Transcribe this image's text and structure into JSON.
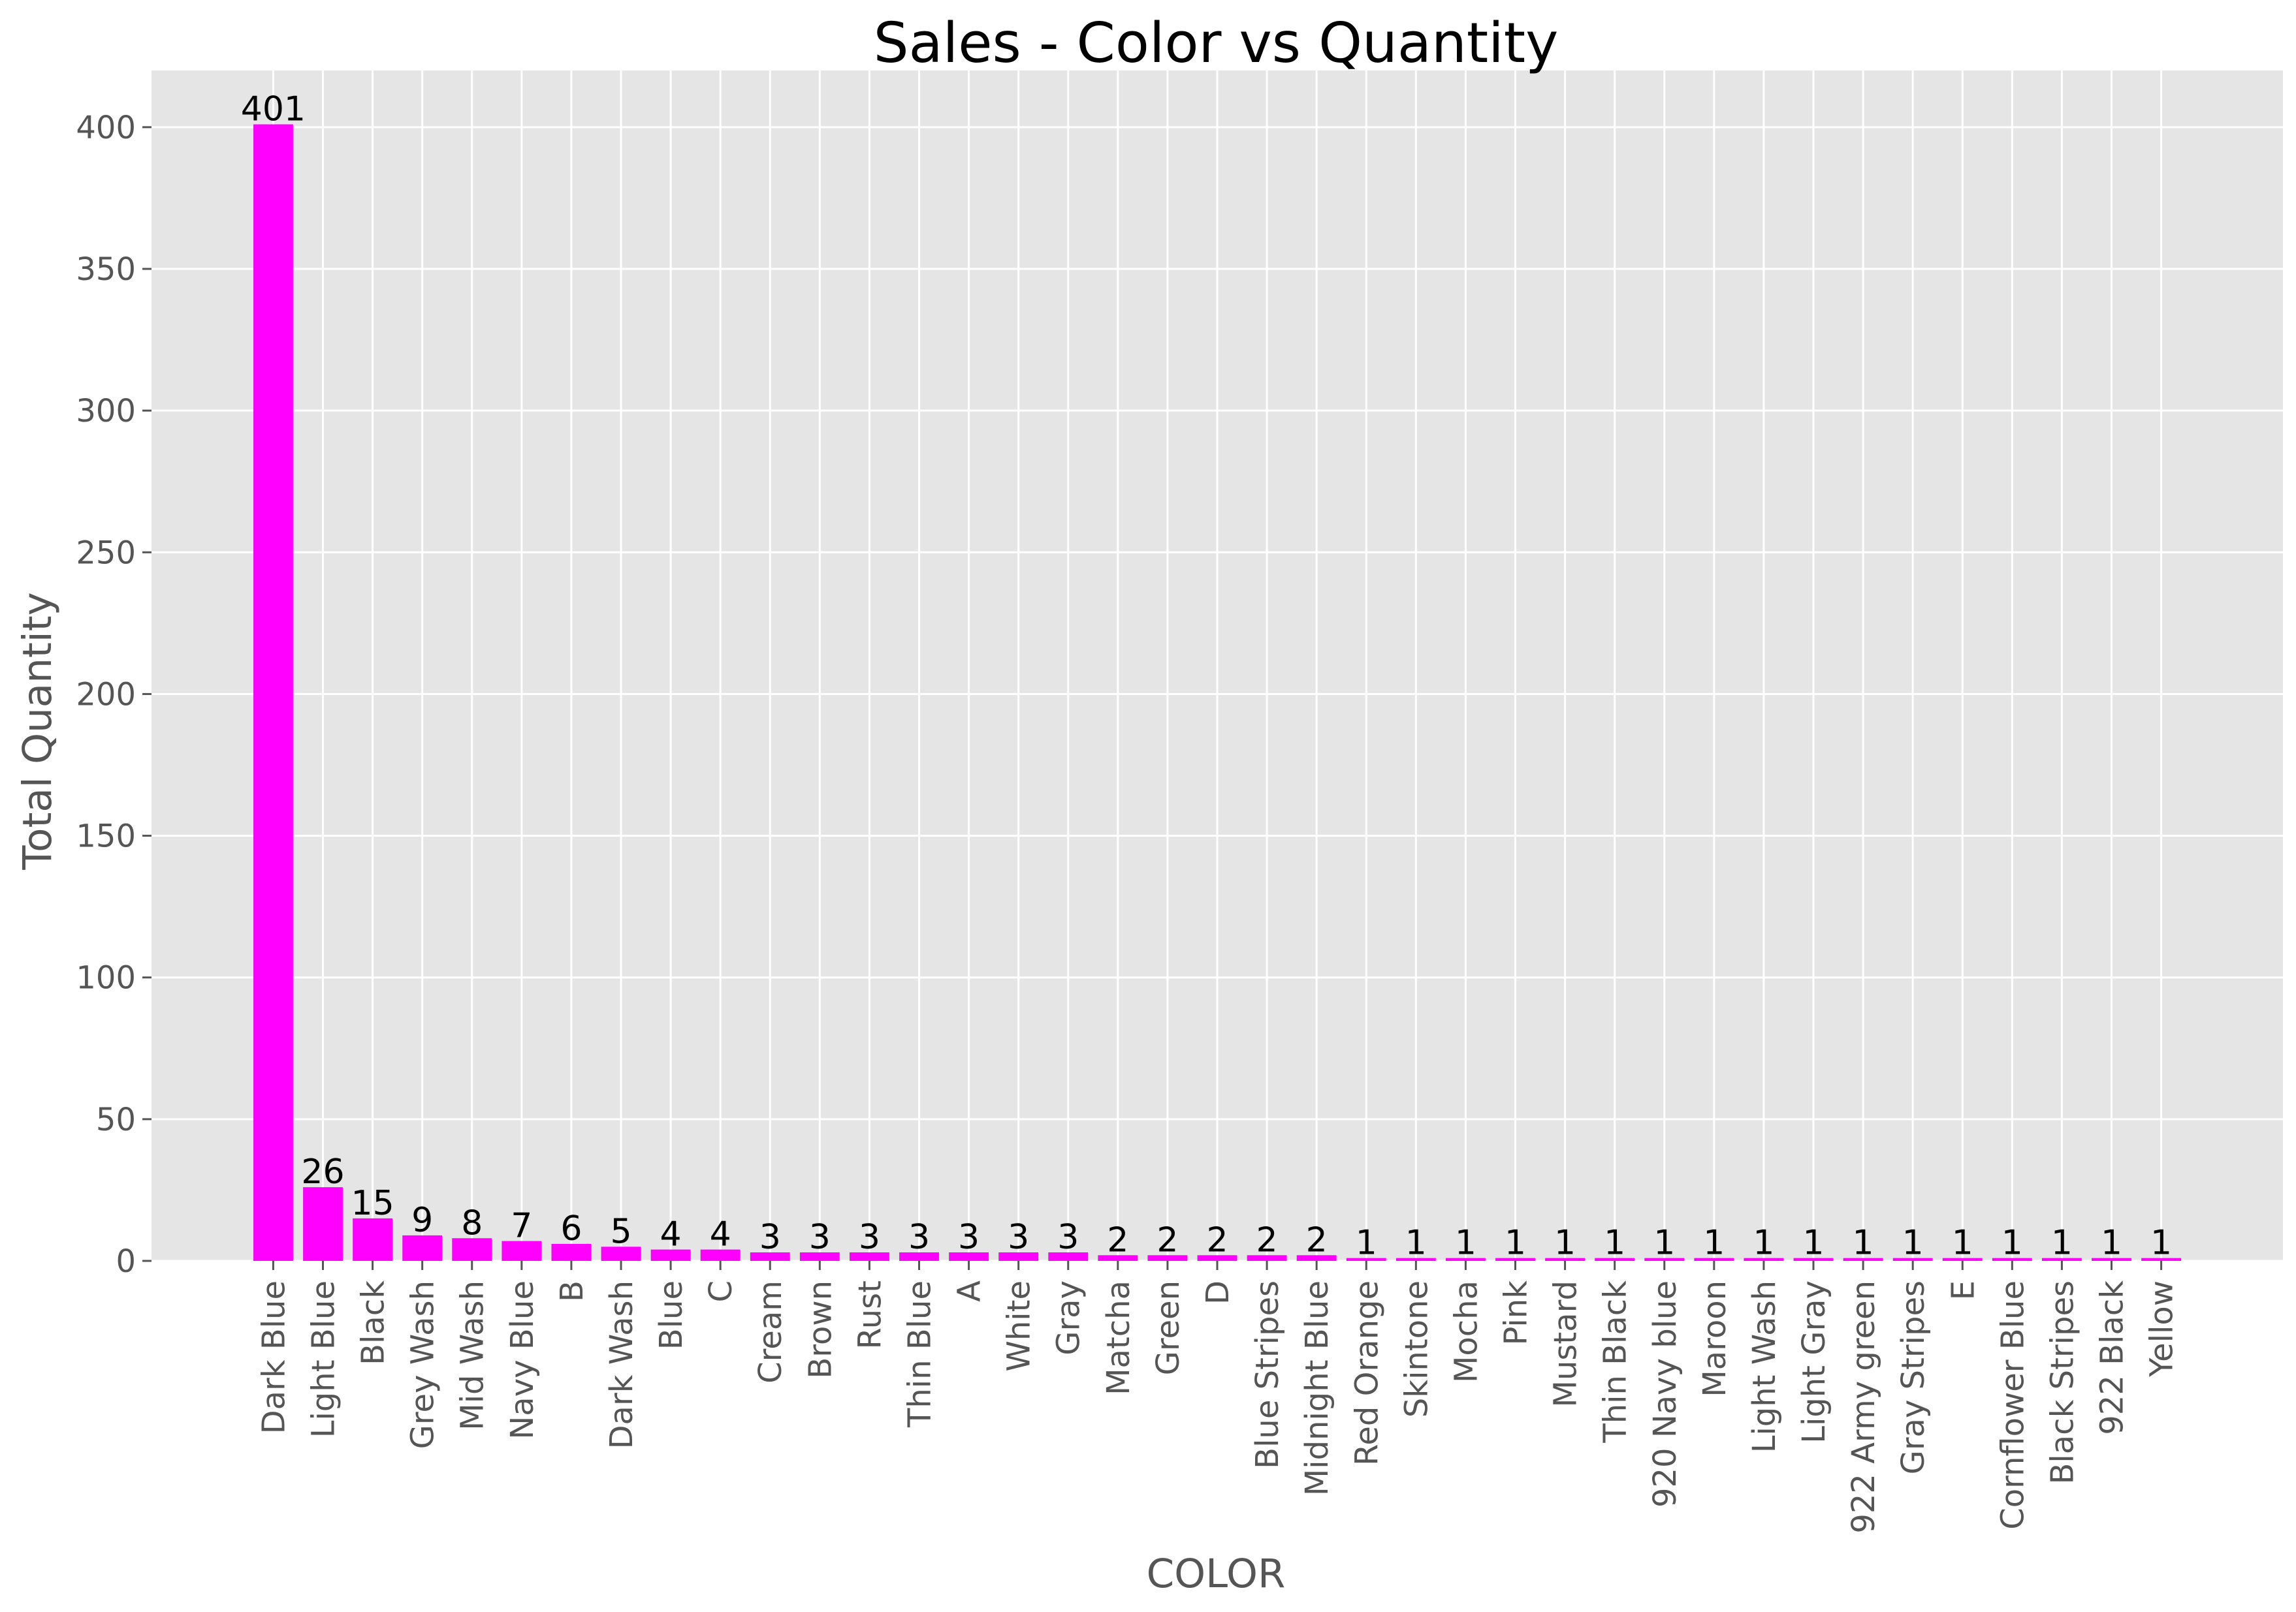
{
  "chart_data": {
    "type": "bar",
    "title": "Sales - Color vs Quantity",
    "xlabel": "COLOR",
    "ylabel": "Total Quantity",
    "ylim": [
      0,
      420
    ],
    "yticks": [
      0,
      50,
      100,
      150,
      200,
      250,
      300,
      350,
      400
    ],
    "grid": true,
    "legend": "none",
    "colors": {
      "bar": "#ff00ff",
      "plot_background": "#e5e5e5",
      "grid": "#ffffff",
      "title_text": "#000000",
      "axis_text": "#555555",
      "data_label_text": "#000000"
    },
    "categories": [
      "Dark Blue",
      "Light Blue",
      "Black",
      "Grey Wash",
      "Mid Wash",
      "Navy Blue",
      "B",
      "Dark Wash",
      "Blue",
      "C",
      "Cream",
      "Brown",
      "Rust",
      "Thin Blue",
      "A",
      "White",
      "Gray",
      "Matcha",
      "Green",
      "D",
      "Blue Stripes",
      "Midnight Blue",
      "Red Orange",
      "Skintone",
      "Mocha",
      "Pink",
      "Mustard",
      "Thin Black",
      "920 Navy blue",
      "Maroon",
      "Light Wash",
      "Light Gray",
      "922 Army green",
      "Gray Stripes",
      "E",
      "Cornflower Blue",
      "Black Stripes",
      "922 Black",
      "Yellow"
    ],
    "values": [
      401,
      26,
      15,
      9,
      8,
      7,
      6,
      5,
      4,
      4,
      3,
      3,
      3,
      3,
      3,
      3,
      3,
      2,
      2,
      2,
      2,
      2,
      1,
      1,
      1,
      1,
      1,
      1,
      1,
      1,
      1,
      1,
      1,
      1,
      1,
      1,
      1,
      1,
      1
    ]
  }
}
